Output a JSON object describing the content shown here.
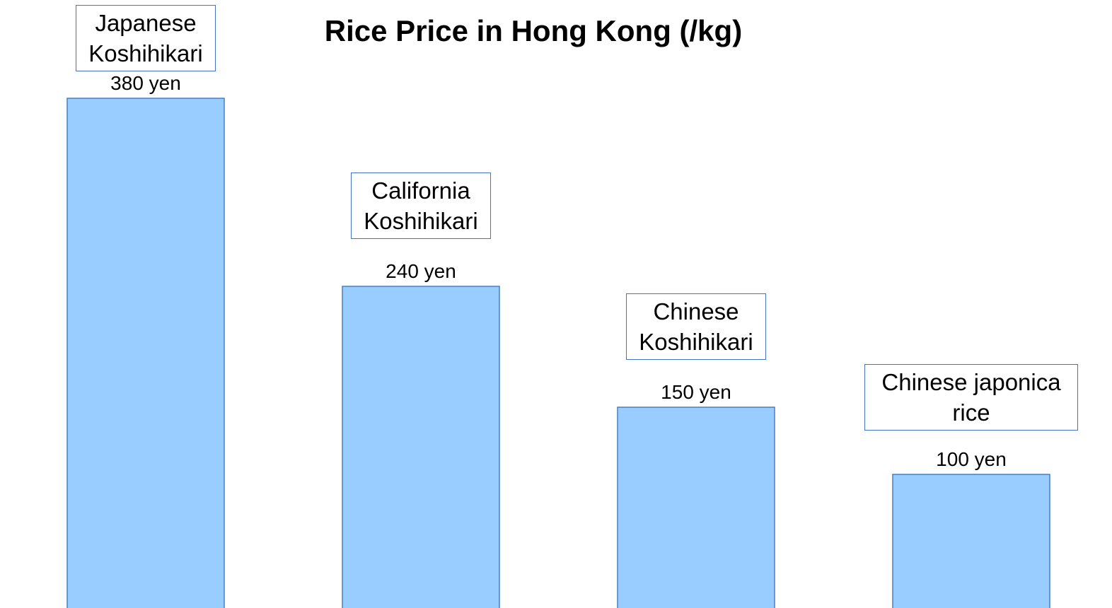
{
  "chart_data": {
    "type": "bar",
    "title": "Rice Price in Hong Kong (/kg)",
    "categories": [
      "Japanese Koshihikari",
      "California Koshihikari",
      "Chinese Koshihikari",
      "Chinese japonica rice"
    ],
    "values": [
      380,
      240,
      150,
      100
    ],
    "value_labels": [
      "380 yen",
      "240 yen",
      "150 yen",
      "100 yen"
    ],
    "color": "#99ccff"
  }
}
